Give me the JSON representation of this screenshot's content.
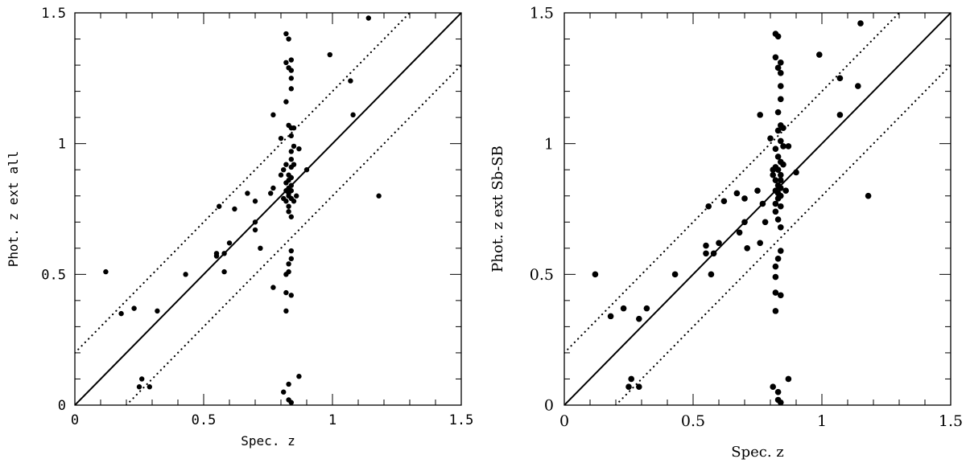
{
  "chart_data": [
    {
      "type": "scatter",
      "xlabel": "Spec. z",
      "ylabel": "Phot. z ext all",
      "xlim": [
        0,
        1.5
      ],
      "ylim": [
        0,
        1.5
      ],
      "x_ticks": [
        "0",
        "0.5",
        "1",
        "1.5"
      ],
      "y_ticks": [
        "0",
        "0.5",
        "1",
        "1.5"
      ],
      "reference_lines": [
        {
          "style": "solid",
          "label": "",
          "points": [
            [
              0,
              0
            ],
            [
              1.5,
              1.5
            ]
          ]
        },
        {
          "style": "dotted",
          "label": "",
          "points": [
            [
              0,
              0.2
            ],
            [
              1.5,
              1.7
            ]
          ]
        },
        {
          "style": "dotted",
          "label": "",
          "points": [
            [
              0.2,
              0
            ],
            [
              1.5,
              1.3
            ]
          ]
        }
      ],
      "points": [
        [
          0.12,
          0.51
        ],
        [
          0.18,
          0.35
        ],
        [
          0.23,
          0.37
        ],
        [
          0.25,
          0.07
        ],
        [
          0.26,
          0.1
        ],
        [
          0.29,
          0.07
        ],
        [
          0.32,
          0.36
        ],
        [
          0.43,
          0.5
        ],
        [
          0.55,
          0.57
        ],
        [
          0.55,
          0.58
        ],
        [
          0.56,
          0.76
        ],
        [
          0.58,
          0.51
        ],
        [
          0.58,
          0.58
        ],
        [
          0.6,
          0.62
        ],
        [
          0.62,
          0.75
        ],
        [
          0.67,
          0.81
        ],
        [
          0.7,
          0.78
        ],
        [
          0.7,
          0.67
        ],
        [
          0.7,
          0.7
        ],
        [
          0.72,
          0.6
        ],
        [
          0.76,
          0.81
        ],
        [
          0.77,
          0.83
        ],
        [
          0.77,
          0.45
        ],
        [
          0.77,
          1.11
        ],
        [
          0.8,
          1.02
        ],
        [
          0.8,
          0.88
        ],
        [
          0.81,
          0.9
        ],
        [
          0.81,
          0.79
        ],
        [
          0.81,
          0.05
        ],
        [
          0.82,
          0.5
        ],
        [
          0.82,
          1.42
        ],
        [
          0.82,
          1.31
        ],
        [
          0.82,
          1.16
        ],
        [
          0.82,
          0.92
        ],
        [
          0.82,
          0.85
        ],
        [
          0.82,
          0.82
        ],
        [
          0.82,
          0.78
        ],
        [
          0.82,
          0.43
        ],
        [
          0.82,
          0.36
        ],
        [
          0.83,
          1.4
        ],
        [
          0.83,
          1.29
        ],
        [
          0.83,
          1.07
        ],
        [
          0.83,
          0.88
        ],
        [
          0.83,
          0.86
        ],
        [
          0.83,
          0.83
        ],
        [
          0.83,
          0.81
        ],
        [
          0.83,
          0.8
        ],
        [
          0.83,
          0.76
        ],
        [
          0.83,
          0.74
        ],
        [
          0.83,
          0.54
        ],
        [
          0.83,
          0.51
        ],
        [
          0.83,
          0.08
        ],
        [
          0.83,
          0.02
        ],
        [
          0.84,
          1.32
        ],
        [
          0.84,
          1.28
        ],
        [
          0.84,
          1.25
        ],
        [
          0.84,
          1.21
        ],
        [
          0.84,
          1.06
        ],
        [
          0.84,
          1.03
        ],
        [
          0.84,
          0.97
        ],
        [
          0.84,
          0.94
        ],
        [
          0.84,
          0.91
        ],
        [
          0.84,
          0.87
        ],
        [
          0.84,
          0.84
        ],
        [
          0.84,
          0.82
        ],
        [
          0.84,
          0.79
        ],
        [
          0.84,
          0.72
        ],
        [
          0.84,
          0.59
        ],
        [
          0.84,
          0.56
        ],
        [
          0.84,
          0.42
        ],
        [
          0.84,
          0.01
        ],
        [
          0.85,
          1.06
        ],
        [
          0.85,
          0.99
        ],
        [
          0.85,
          0.92
        ],
        [
          0.85,
          0.78
        ],
        [
          0.86,
          0.8
        ],
        [
          0.87,
          0.98
        ],
        [
          0.87,
          0.11
        ],
        [
          0.9,
          0.9
        ],
        [
          0.99,
          1.34
        ],
        [
          1.07,
          1.24
        ],
        [
          1.08,
          1.11
        ],
        [
          1.14,
          1.48
        ],
        [
          1.18,
          0.8
        ]
      ]
    },
    {
      "type": "scatter",
      "xlabel": "Spec. z",
      "ylabel": "Phot. z ext Sb-SB",
      "xlim": [
        0,
        1.5
      ],
      "ylim": [
        0,
        1.5
      ],
      "x_ticks": [
        "0",
        "0.5",
        "1",
        "1.5"
      ],
      "y_ticks": [
        "0",
        "0.5",
        "1",
        "1.5"
      ],
      "reference_lines": [
        {
          "style": "solid",
          "label": "",
          "points": [
            [
              0,
              0
            ],
            [
              1.5,
              1.5
            ]
          ]
        },
        {
          "style": "dotted",
          "label": "",
          "points": [
            [
              0,
              0.2
            ],
            [
              1.5,
              1.7
            ]
          ]
        },
        {
          "style": "dotted",
          "label": "",
          "points": [
            [
              0.2,
              0
            ],
            [
              1.5,
              1.3
            ]
          ]
        }
      ],
      "points": [
        [
          0.12,
          0.5
        ],
        [
          0.18,
          0.34
        ],
        [
          0.23,
          0.37
        ],
        [
          0.25,
          0.07
        ],
        [
          0.26,
          0.1
        ],
        [
          0.29,
          0.33
        ],
        [
          0.29,
          0.07
        ],
        [
          0.32,
          0.37
        ],
        [
          0.43,
          0.5
        ],
        [
          0.55,
          0.61
        ],
        [
          0.55,
          0.58
        ],
        [
          0.56,
          0.76
        ],
        [
          0.57,
          0.5
        ],
        [
          0.58,
          0.58
        ],
        [
          0.6,
          0.62
        ],
        [
          0.62,
          0.78
        ],
        [
          0.67,
          0.81
        ],
        [
          0.68,
          0.66
        ],
        [
          0.7,
          0.7
        ],
        [
          0.7,
          0.79
        ],
        [
          0.71,
          0.6
        ],
        [
          0.75,
          0.82
        ],
        [
          0.76,
          0.62
        ],
        [
          0.76,
          1.11
        ],
        [
          0.77,
          0.77
        ],
        [
          0.78,
          0.7
        ],
        [
          0.8,
          1.02
        ],
        [
          0.81,
          0.9
        ],
        [
          0.81,
          0.88
        ],
        [
          0.81,
          0.07
        ],
        [
          0.82,
          1.42
        ],
        [
          0.82,
          1.33
        ],
        [
          0.82,
          0.98
        ],
        [
          0.82,
          0.91
        ],
        [
          0.82,
          0.86
        ],
        [
          0.82,
          0.82
        ],
        [
          0.82,
          0.77
        ],
        [
          0.82,
          0.74
        ],
        [
          0.82,
          0.53
        ],
        [
          0.82,
          0.49
        ],
        [
          0.82,
          0.43
        ],
        [
          0.82,
          0.36
        ],
        [
          0.83,
          1.41
        ],
        [
          0.83,
          1.29
        ],
        [
          0.83,
          1.12
        ],
        [
          0.83,
          1.05
        ],
        [
          0.83,
          0.95
        ],
        [
          0.83,
          0.9
        ],
        [
          0.83,
          0.84
        ],
        [
          0.83,
          0.81
        ],
        [
          0.83,
          0.79
        ],
        [
          0.83,
          0.71
        ],
        [
          0.83,
          0.56
        ],
        [
          0.83,
          0.05
        ],
        [
          0.83,
          0.02
        ],
        [
          0.84,
          1.31
        ],
        [
          0.84,
          1.27
        ],
        [
          0.84,
          1.22
        ],
        [
          0.84,
          1.17
        ],
        [
          0.84,
          1.07
        ],
        [
          0.84,
          1.01
        ],
        [
          0.84,
          0.93
        ],
        [
          0.84,
          0.88
        ],
        [
          0.84,
          0.86
        ],
        [
          0.84,
          0.83
        ],
        [
          0.84,
          0.8
        ],
        [
          0.84,
          0.76
        ],
        [
          0.84,
          0.68
        ],
        [
          0.84,
          0.59
        ],
        [
          0.84,
          0.42
        ],
        [
          0.84,
          0.01
        ],
        [
          0.85,
          1.06
        ],
        [
          0.85,
          0.99
        ],
        [
          0.85,
          0.92
        ],
        [
          0.86,
          0.82
        ],
        [
          0.87,
          0.99
        ],
        [
          0.87,
          0.1
        ],
        [
          0.9,
          0.89
        ],
        [
          0.99,
          1.34
        ],
        [
          1.07,
          1.25
        ],
        [
          1.07,
          1.11
        ],
        [
          1.14,
          1.22
        ],
        [
          1.15,
          1.46
        ],
        [
          1.18,
          0.8
        ]
      ]
    }
  ]
}
